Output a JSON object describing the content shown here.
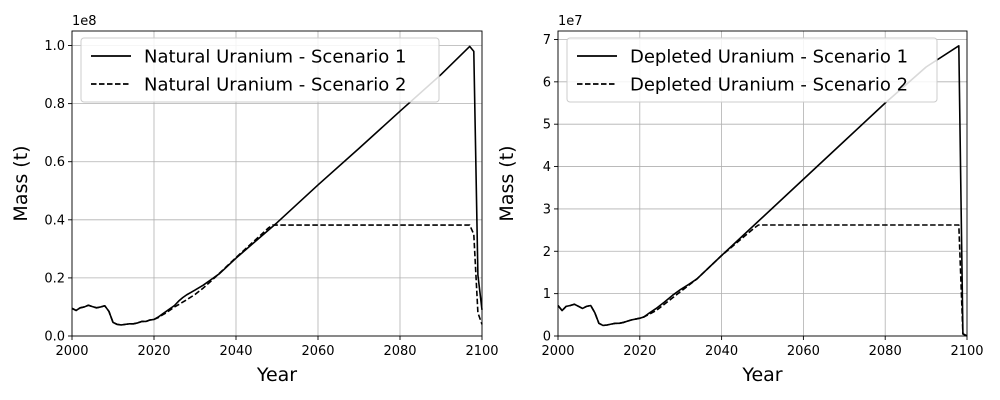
{
  "chart_data": [
    {
      "type": "line",
      "xlabel": "Year",
      "ylabel": "Mass (t)",
      "offset_text": "1e8",
      "xlim": [
        2000,
        2100
      ],
      "ylim": [
        0,
        1.05
      ],
      "xticks": [
        2000,
        2020,
        2040,
        2060,
        2080,
        2100
      ],
      "yticks": [
        0.0,
        0.2,
        0.4,
        0.6,
        0.8,
        1.0
      ],
      "ytick_labels": [
        "0.0",
        "0.2",
        "0.4",
        "0.6",
        "0.8",
        "1.0"
      ],
      "grid": true,
      "legend_position": "upper-left",
      "series": [
        {
          "name": "Natural Uranium - Scenario 1",
          "style": "solid",
          "color": "#000000",
          "x": [
            2000,
            2001,
            2002,
            2003,
            2004,
            2005,
            2006,
            2007,
            2008,
            2009,
            2010,
            2011,
            2012,
            2013,
            2014,
            2015,
            2016,
            2017,
            2018,
            2019,
            2020,
            2021,
            2022,
            2023,
            2024,
            2025,
            2026,
            2027,
            2028,
            2029,
            2030,
            2032,
            2034,
            2036,
            2040,
            2050,
            2060,
            2070,
            2080,
            2090,
            2097,
            2098,
            2099,
            2100
          ],
          "y": [
            0.095,
            0.088,
            0.097,
            0.1,
            0.106,
            0.101,
            0.097,
            0.1,
            0.104,
            0.085,
            0.047,
            0.04,
            0.038,
            0.04,
            0.042,
            0.042,
            0.045,
            0.05,
            0.05,
            0.055,
            0.057,
            0.065,
            0.075,
            0.085,
            0.095,
            0.105,
            0.12,
            0.132,
            0.142,
            0.15,
            0.158,
            0.175,
            0.195,
            0.215,
            0.268,
            0.39,
            0.52,
            0.646,
            0.774,
            0.9,
            0.997,
            0.98,
            0.21,
            0.09
          ]
        },
        {
          "name": "Natural Uranium - Scenario 2",
          "style": "dashed",
          "color": "#000000",
          "x": [
            2000,
            2001,
            2002,
            2003,
            2004,
            2005,
            2006,
            2007,
            2008,
            2009,
            2010,
            2011,
            2012,
            2013,
            2014,
            2015,
            2016,
            2017,
            2018,
            2019,
            2020,
            2021,
            2022,
            2023,
            2024,
            2025,
            2026,
            2028,
            2030,
            2032,
            2034,
            2040,
            2048,
            2049,
            2060,
            2080,
            2097,
            2098,
            2099,
            2100
          ],
          "y": [
            0.095,
            0.088,
            0.097,
            0.1,
            0.106,
            0.101,
            0.097,
            0.1,
            0.104,
            0.085,
            0.047,
            0.04,
            0.038,
            0.04,
            0.042,
            0.042,
            0.045,
            0.05,
            0.05,
            0.055,
            0.057,
            0.063,
            0.072,
            0.08,
            0.09,
            0.1,
            0.108,
            0.125,
            0.143,
            0.165,
            0.19,
            0.27,
            0.373,
            0.382,
            0.382,
            0.382,
            0.382,
            0.35,
            0.08,
            0.04
          ]
        }
      ]
    },
    {
      "type": "line",
      "xlabel": "Year",
      "ylabel": "Mass (t)",
      "offset_text": "1e7",
      "xlim": [
        2000,
        2100
      ],
      "ylim": [
        0,
        7.2
      ],
      "xticks": [
        2000,
        2020,
        2040,
        2060,
        2080,
        2100
      ],
      "yticks": [
        0,
        1,
        2,
        3,
        4,
        5,
        6,
        7
      ],
      "ytick_labels": [
        "0",
        "1",
        "2",
        "3",
        "4",
        "5",
        "6",
        "7"
      ],
      "grid": true,
      "legend_position": "upper-left",
      "series": [
        {
          "name": "Depleted Uranium - Scenario 1",
          "style": "solid",
          "color": "#000000",
          "x": [
            2000,
            2001,
            2002,
            2003,
            2004,
            2005,
            2006,
            2007,
            2008,
            2009,
            2010,
            2011,
            2012,
            2013,
            2014,
            2015,
            2016,
            2017,
            2018,
            2019,
            2020,
            2021,
            2022,
            2024,
            2026,
            2028,
            2030,
            2032,
            2034,
            2040,
            2050,
            2060,
            2070,
            2080,
            2090,
            2098,
            2099,
            2100
          ],
          "y": [
            0.72,
            0.6,
            0.7,
            0.72,
            0.75,
            0.7,
            0.65,
            0.7,
            0.72,
            0.55,
            0.3,
            0.25,
            0.26,
            0.28,
            0.3,
            0.3,
            0.32,
            0.35,
            0.38,
            0.4,
            0.42,
            0.45,
            0.52,
            0.65,
            0.8,
            0.96,
            1.1,
            1.22,
            1.35,
            1.9,
            2.8,
            3.7,
            4.6,
            5.5,
            6.35,
            6.85,
            0.05,
            0.0
          ]
        },
        {
          "name": "Depleted Uranium - Scenario 2",
          "style": "dashed",
          "color": "#000000",
          "x": [
            2000,
            2001,
            2002,
            2003,
            2004,
            2005,
            2006,
            2007,
            2008,
            2009,
            2010,
            2011,
            2012,
            2013,
            2014,
            2015,
            2016,
            2017,
            2018,
            2019,
            2020,
            2021,
            2022,
            2024,
            2026,
            2028,
            2030,
            2032,
            2034,
            2040,
            2048,
            2049,
            2060,
            2080,
            2098,
            2099,
            2100
          ],
          "y": [
            0.72,
            0.6,
            0.7,
            0.72,
            0.75,
            0.7,
            0.65,
            0.7,
            0.72,
            0.55,
            0.3,
            0.25,
            0.26,
            0.28,
            0.3,
            0.3,
            0.32,
            0.35,
            0.38,
            0.4,
            0.42,
            0.45,
            0.5,
            0.6,
            0.75,
            0.9,
            1.05,
            1.2,
            1.35,
            1.9,
            2.55,
            2.62,
            2.62,
            2.62,
            2.62,
            0.05,
            0.0
          ]
        }
      ]
    }
  ]
}
